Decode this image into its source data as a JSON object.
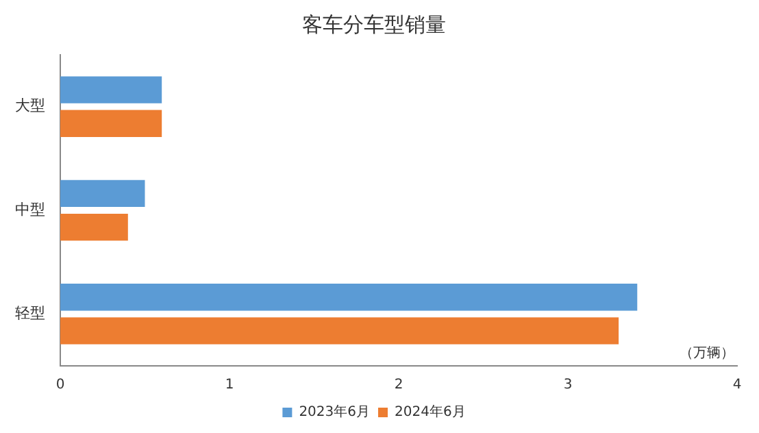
{
  "chart_data": {
    "type": "bar",
    "orientation": "horizontal",
    "title": "客车分车型销量",
    "categories": [
      "大型",
      "中型",
      "轻型"
    ],
    "series": [
      {
        "name": "2023年6月",
        "color": "#5b9bd5",
        "values": [
          0.6,
          0.5,
          3.41
        ]
      },
      {
        "name": "2024年6月",
        "color": "#ed7d31",
        "values": [
          0.6,
          0.4,
          3.3
        ]
      }
    ],
    "xlim": [
      0,
      4
    ],
    "xticks": [
      0,
      1,
      2,
      3,
      4
    ],
    "grid": false,
    "legend": "bottom",
    "annotations": [
      "（万辆）"
    ]
  }
}
